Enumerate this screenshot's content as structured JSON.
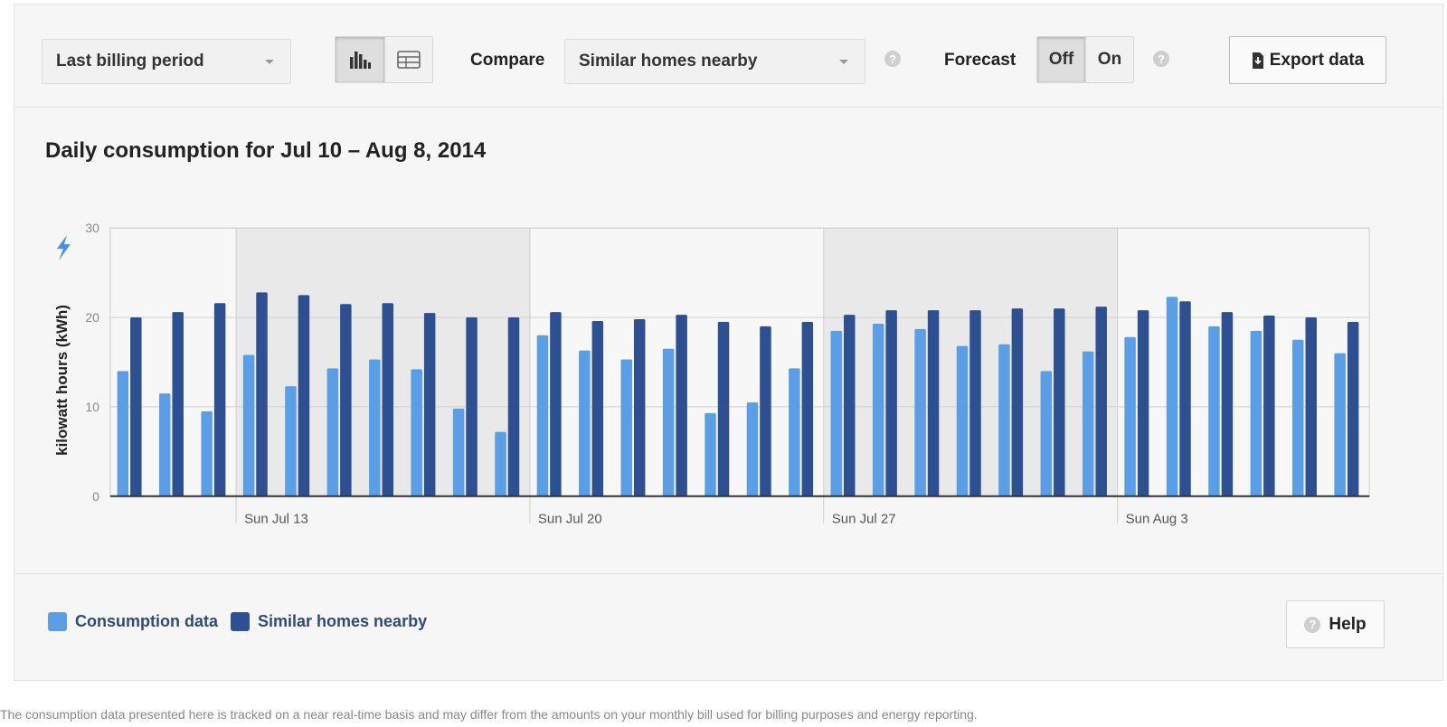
{
  "toolbar": {
    "period_select": "Last billing period",
    "view_toggle": {
      "chart_icon": "bar-chart-icon",
      "table_icon": "table-icon",
      "selected": "chart"
    },
    "compare_label": "Compare",
    "compare_select": "Similar homes nearby",
    "compare_help": "?",
    "forecast_label": "Forecast",
    "forecast_off": "Off",
    "forecast_on": "On",
    "forecast_selected": "Off",
    "forecast_help": "?",
    "export_label": "Export data",
    "export_icon": "file-download-icon"
  },
  "chart_title": "Daily consumption for Jul 10 – Aug 8, 2014",
  "chart_data": {
    "type": "bar",
    "ylabel": "kilowatt hours (kWh)",
    "y_icon": "lightning-icon",
    "ylim": [
      0,
      30
    ],
    "yticks": [
      "0",
      "10",
      "20",
      "30"
    ],
    "x_start": "2014-07-10",
    "x_tick_labels": [
      "Sun Jul 13",
      "Sun Jul 20",
      "Sun Jul 27",
      "Sun Aug 3"
    ],
    "x_tick_dates": [
      "2014-07-13",
      "2014-07-20",
      "2014-07-27",
      "2014-08-03"
    ],
    "categories": [
      "Jul 10",
      "Jul 11",
      "Jul 12",
      "Jul 13",
      "Jul 14",
      "Jul 15",
      "Jul 16",
      "Jul 17",
      "Jul 18",
      "Jul 19",
      "Jul 20",
      "Jul 21",
      "Jul 22",
      "Jul 23",
      "Jul 24",
      "Jul 25",
      "Jul 26",
      "Jul 27",
      "Jul 28",
      "Jul 29",
      "Jul 30",
      "Jul 31",
      "Aug 1",
      "Aug 2",
      "Aug 3",
      "Aug 4",
      "Aug 5",
      "Aug 6",
      "Aug 7",
      "Aug 8"
    ],
    "series": [
      {
        "name": "Consumption data",
        "color": "#5b9ee6",
        "values": [
          14.0,
          11.5,
          9.5,
          15.8,
          12.3,
          14.3,
          15.3,
          14.2,
          9.8,
          7.2,
          18.0,
          16.3,
          15.3,
          16.5,
          9.3,
          10.5,
          14.3,
          18.5,
          19.3,
          18.7,
          16.8,
          17.0,
          14.0,
          16.2,
          17.8,
          22.3,
          19.0,
          18.5,
          17.5,
          16.0
        ]
      },
      {
        "name": "Similar homes nearby",
        "color": "#2e5090",
        "values": [
          20.0,
          20.6,
          21.6,
          22.8,
          22.5,
          21.5,
          21.6,
          20.5,
          20.0,
          20.0,
          20.6,
          19.6,
          19.8,
          20.3,
          19.5,
          19.0,
          19.5,
          20.3,
          20.8,
          20.8,
          20.8,
          21.0,
          21.0,
          21.2,
          20.8,
          21.8,
          20.6,
          20.2,
          20.0,
          19.5
        ]
      }
    ],
    "weekend_shading": true,
    "grid": true,
    "legend": "bottom-left"
  },
  "legend": {
    "items": [
      {
        "label": "Consumption data",
        "color": "#5b9ee6"
      },
      {
        "label": "Similar homes nearby",
        "color": "#2e5090"
      }
    ]
  },
  "help_button": {
    "label": "Help",
    "icon": "help-circle-icon",
    "icon_glyph": "?"
  },
  "footnote": "The consumption data presented here is tracked on a near real-time basis and may differ from the amounts on your monthly bill used for billing purposes and energy reporting."
}
